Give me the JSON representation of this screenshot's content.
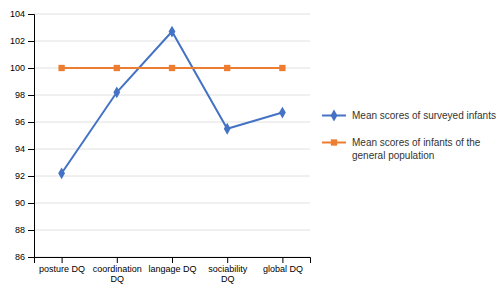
{
  "chart_data": {
    "type": "line",
    "categories": [
      "posture DQ",
      "coordination\nDQ",
      "langage DQ",
      "sociability\nDQ",
      "global DQ"
    ],
    "series": [
      {
        "name": "Mean scores of surveyed infants",
        "color": "#4472C4",
        "marker": "diamond",
        "values": [
          92.2,
          98.2,
          102.7,
          95.5,
          96.7
        ]
      },
      {
        "name": "Mean scores of infants of the\ngeneral population",
        "color": "#ED7D31",
        "marker": "square",
        "values": [
          100,
          100,
          100,
          100,
          100
        ]
      }
    ],
    "ylim": [
      86,
      104
    ],
    "yticks": [
      86,
      88,
      90,
      92,
      94,
      96,
      98,
      100,
      102,
      104
    ],
    "grid": true,
    "legend": "right"
  }
}
